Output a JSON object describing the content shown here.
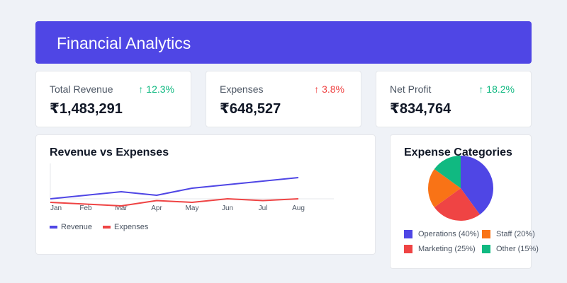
{
  "header": {
    "title": "Financial Analytics"
  },
  "kpis": [
    {
      "label": "Total Revenue",
      "change": "↑ 12.3%",
      "direction": "up",
      "value": "₹1,483,291",
      "color": "#10b981"
    },
    {
      "label": "Expenses",
      "change": "↑ 3.8%",
      "direction": "down",
      "value": "₹648,527",
      "color": "#ef4444"
    },
    {
      "label": "Net Profit",
      "change": "↑ 18.2%",
      "direction": "up",
      "value": "₹834,764",
      "color": "#10b981"
    }
  ],
  "colors": {
    "header": "#4f46e5",
    "revenue": "#4f46e5",
    "expenses": "#ef4444",
    "operations": "#4f46e5",
    "staff": "#f97316",
    "marketing": "#ef4444",
    "other": "#10b981"
  },
  "chart_data": [
    {
      "type": "line",
      "title": "Revenue vs Expenses",
      "categories": [
        "Jan",
        "Feb",
        "Mar",
        "Apr",
        "May",
        "Jun",
        "Jul",
        "Aug"
      ],
      "series": [
        {
          "name": "Revenue",
          "color": "#4f46e5",
          "values": [
            40,
            50,
            60,
            50,
            70,
            80,
            90,
            100
          ]
        },
        {
          "name": "Expenses",
          "color": "#ef4444",
          "values": [
            30,
            25,
            20,
            35,
            30,
            40,
            35,
            40
          ]
        }
      ],
      "legend_position": "bottom-left",
      "grid": false
    },
    {
      "type": "pie",
      "title": "Expense Categories",
      "slices": [
        {
          "label": "Operations (40%)",
          "value": 40,
          "color": "#4f46e5"
        },
        {
          "label": "Marketing (25%)",
          "value": 25,
          "color": "#ef4444"
        },
        {
          "label": "Staff (20%)",
          "value": 20,
          "color": "#f97316"
        },
        {
          "label": "Other (15%)",
          "value": 15,
          "color": "#10b981"
        }
      ],
      "legend_position": "bottom"
    }
  ]
}
